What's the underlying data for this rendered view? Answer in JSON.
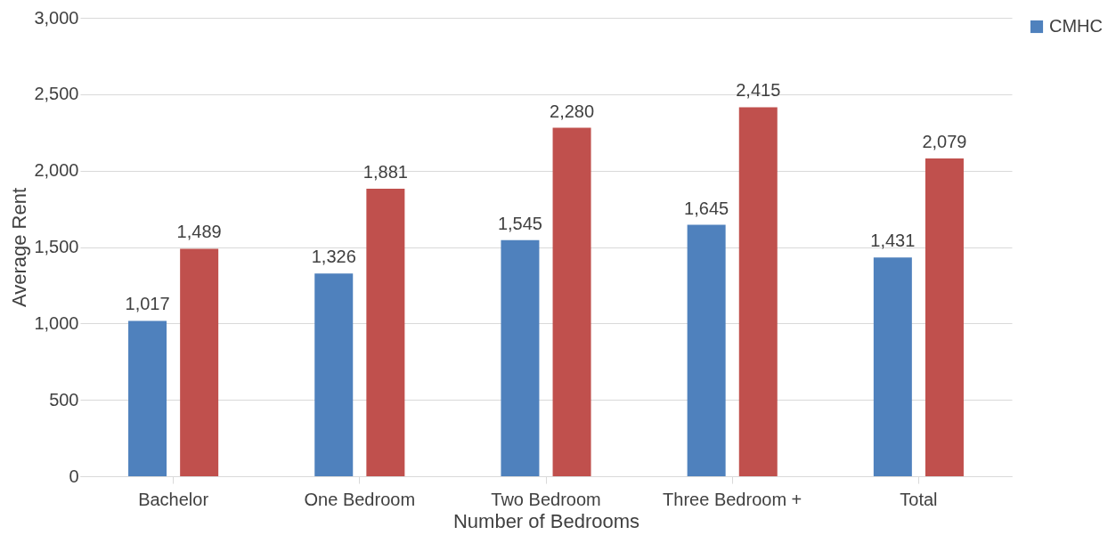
{
  "chart_data": {
    "type": "bar",
    "xlabel": "Number of Bedrooms",
    "ylabel": "Average Rent",
    "categories": [
      "Bachelor",
      "One Bedroom",
      "Two Bedroom",
      "Three Bedroom +",
      "Total"
    ],
    "series": [
      {
        "name": "CMHC",
        "color": "#4f81bd",
        "values": [
          1017,
          1326,
          1545,
          1645,
          1431
        ],
        "value_labels": [
          "1,017",
          "1,326",
          "1,545",
          "1,645",
          "1,431"
        ]
      },
      {
        "color": "#c0504d",
        "values": [
          1489,
          1881,
          2280,
          2415,
          2079
        ],
        "value_labels": [
          "1,489",
          "1,881",
          "2,280",
          "2,415",
          "2,079"
        ]
      }
    ],
    "ylim": [
      0,
      3000
    ],
    "yticks": [
      0,
      500,
      {
        "value": 1000,
        "label": "1,000"
      },
      {
        "value": 1500,
        "label": "1,500"
      },
      {
        "value": 2000,
        "label": "2,000"
      },
      {
        "value": 2500,
        "label": "2,500"
      },
      {
        "value": 3000,
        "label": "3,000"
      }
    ],
    "grid": "y",
    "legend": "right"
  }
}
